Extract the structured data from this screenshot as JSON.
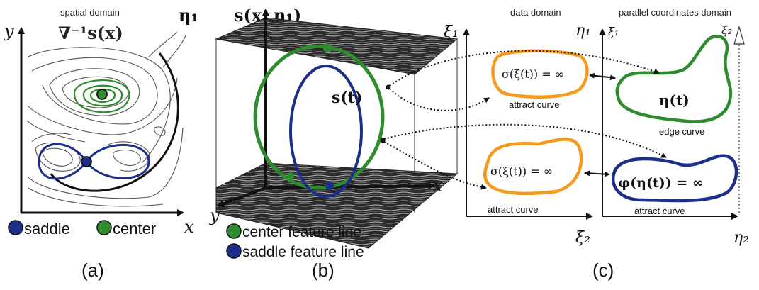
{
  "panel_a": {
    "title": "spatial domain",
    "formula": "∇⁻¹s(x)",
    "axis_x": "x",
    "axis_y": "y",
    "legend_saddle": "saddle",
    "legend_center": "center",
    "caption": "(a)"
  },
  "panel_b": {
    "title": "s(x, η₁)",
    "axis_eta": "η₁",
    "axis_x": "x",
    "axis_y": "y",
    "curve_label": "s(t)",
    "legend_center": "center feature line",
    "legend_saddle": "saddle feature line",
    "caption": "(b)"
  },
  "panel_c": {
    "data_domain_title": "data domain",
    "pc_domain_title": "parallel coordinates domain",
    "axis_xi1_left": "ξ₁",
    "axis_xi2": "ξ₂",
    "axis_eta1": "η₁",
    "axis_xi1_right": "ξ₁",
    "axis_xi2_top": "ξ₂",
    "axis_eta2": "η₂",
    "sigma_top": "σ(ξ(t)) = ∞",
    "sigma_bottom": "σ(ξ(t)) = ∞",
    "eta_curve": "η(t)",
    "phi_curve": "φ(η(t)) = ∞",
    "attract_curve_1": "attract curve",
    "attract_curve_2": "attract curve",
    "attract_curve_3": "attract curve",
    "edge_curve": "edge curve",
    "caption": "(c)"
  },
  "colors": {
    "green": "#2e8b2e",
    "blue": "#1c2f8a",
    "orange": "#f59a1e",
    "dark": "#111111",
    "gray_plane": "#3a3a3a"
  }
}
